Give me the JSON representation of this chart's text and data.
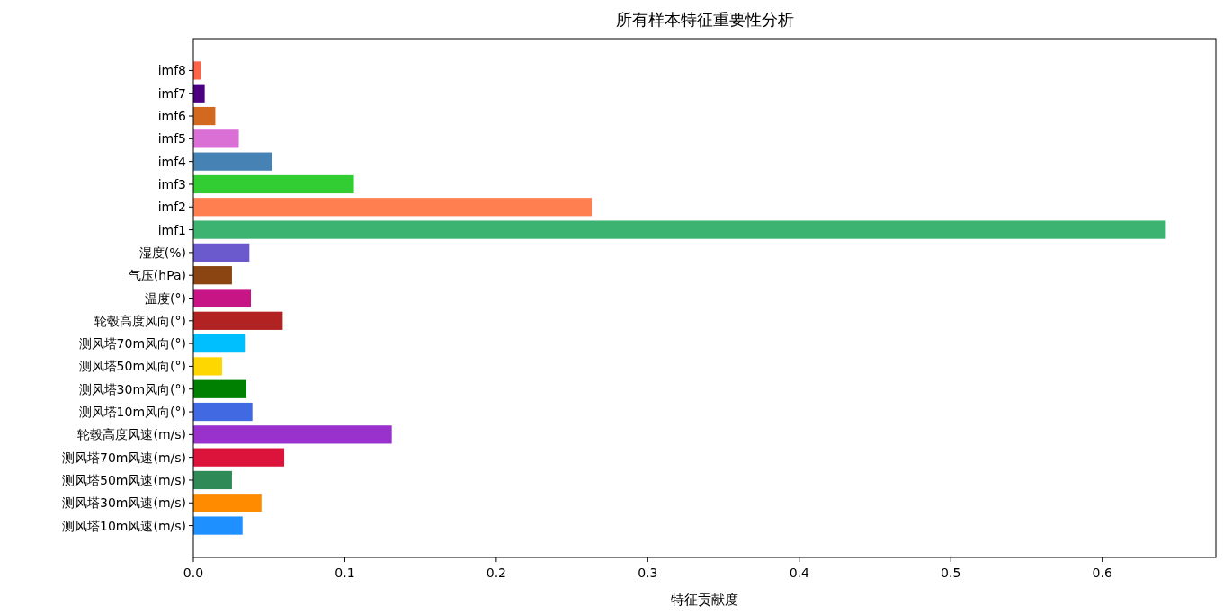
{
  "chart_data": {
    "type": "bar",
    "orientation": "horizontal",
    "title": "所有样本特征重要性分析",
    "xlabel": "特征贡献度",
    "categories": [
      "imf8",
      "imf7",
      "imf6",
      "imf5",
      "imf4",
      "imf3",
      "imf2",
      "imf1",
      "湿度(%)",
      "气压(hPa)",
      "温度(°)",
      "轮毂高度风向(°)",
      "测风塔70m风向(°)",
      "测风塔50m风向(°)",
      "测风塔30m风向(°)",
      "测风塔10m风向(°)",
      "轮毂高度风速(m/s)",
      "测风塔70m风速(m/s)",
      "测风塔50m风速(m/s)",
      "测风塔30m风速(m/s)",
      "测风塔10m风速(m/s)"
    ],
    "values": [
      0.005,
      0.0075,
      0.0145,
      0.03,
      0.052,
      0.106,
      0.263,
      0.642,
      0.037,
      0.0255,
      0.038,
      0.059,
      0.034,
      0.019,
      0.035,
      0.039,
      0.131,
      0.06,
      0.0255,
      0.045,
      0.0325
    ],
    "colors": [
      "#ff6347",
      "#4b0082",
      "#d2691e",
      "#da70d6",
      "#4682b4",
      "#32cd32",
      "#ff7f50",
      "#3cb371",
      "#6a5acd",
      "#8b4513",
      "#c71585",
      "#b22222",
      "#00bfff",
      "#ffd700",
      "#008000",
      "#4169e1",
      "#9932cc",
      "#dc143c",
      "#2e8b57",
      "#ff8c00",
      "#1e90ff"
    ],
    "xlim": [
      0,
      0.675
    ],
    "xticks": [
      {
        "value": 0,
        "label": "0.0"
      },
      0.1,
      0.2,
      0.3,
      0.4,
      0.5,
      0.6
    ],
    "grid": false
  }
}
